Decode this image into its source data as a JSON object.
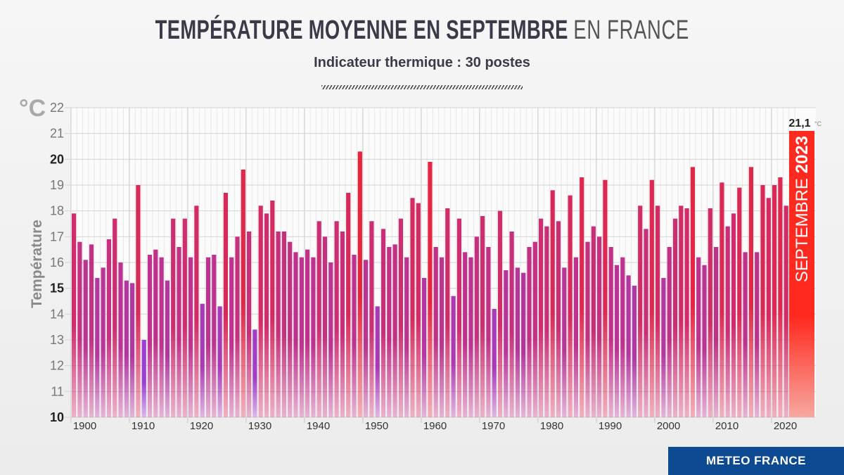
{
  "header": {
    "title_bold": "TEMPÉRATURE MOYENNE EN SEPTEMBRE",
    "title_light": "EN FRANCE",
    "subtitle": "Indicateur thermique : 30 postes"
  },
  "brand": "METEO FRANCE",
  "colors": {
    "cold": "#9b3fd0",
    "warm": "#e8243c",
    "highlight": "#ff2a1f",
    "brand": "#0d4a91"
  },
  "chart_data": {
    "type": "bar",
    "title": "TEMPÉRATURE MOYENNE EN SEPTEMBRE EN FRANCE",
    "subtitle": "Indicateur thermique : 30 postes",
    "ylabel": "Température",
    "yunit": "°C",
    "ylim": [
      10,
      22
    ],
    "yticks": [
      10,
      11,
      12,
      13,
      14,
      15,
      16,
      17,
      18,
      19,
      20,
      21,
      22
    ],
    "xticks": [
      1900,
      1910,
      1920,
      1930,
      1940,
      1950,
      1960,
      1970,
      1980,
      1990,
      2000,
      2010,
      2020
    ],
    "grid": true,
    "x_start": 1900,
    "values": [
      17.9,
      16.8,
      16.1,
      16.7,
      15.4,
      15.8,
      16.9,
      17.7,
      16.0,
      15.3,
      15.2,
      19.0,
      13.0,
      16.3,
      16.5,
      16.2,
      15.3,
      17.7,
      16.6,
      17.7,
      16.2,
      18.2,
      14.4,
      16.2,
      16.3,
      14.3,
      18.7,
      16.2,
      17.0,
      19.6,
      17.2,
      13.4,
      18.2,
      17.9,
      18.4,
      17.2,
      17.2,
      16.8,
      16.4,
      16.2,
      16.5,
      16.2,
      17.6,
      17.0,
      16.0,
      17.6,
      17.2,
      18.7,
      16.3,
      20.3,
      16.1,
      17.6,
      14.3,
      17.3,
      16.6,
      16.7,
      17.7,
      16.2,
      18.5,
      18.3,
      15.4,
      19.9,
      16.6,
      16.2,
      18.1,
      14.7,
      17.7,
      16.4,
      16.2,
      17.0,
      17.8,
      16.6,
      14.2,
      18.0,
      15.7,
      17.2,
      15.8,
      15.6,
      16.6,
      16.8,
      17.7,
      17.4,
      18.8,
      17.6,
      15.8,
      18.6,
      16.2,
      19.3,
      16.8,
      17.4,
      17.0,
      19.2,
      16.6,
      15.9,
      16.2,
      15.5,
      15.1,
      18.2,
      17.3,
      19.2,
      18.2,
      15.4,
      16.6,
      17.7,
      18.2,
      18.1,
      19.7,
      16.2,
      15.9,
      18.1,
      16.6,
      19.1,
      17.4,
      17.9,
      18.9,
      16.4,
      19.7,
      16.4,
      19.0,
      18.5,
      19.0,
      19.3,
      18.2,
      21.1
    ],
    "highlight": {
      "year": 2023,
      "value": 21.1,
      "value_label": "21,1",
      "unit_label": "°C",
      "label_month": "SEPTEMBRE",
      "label_year": "2023"
    }
  }
}
